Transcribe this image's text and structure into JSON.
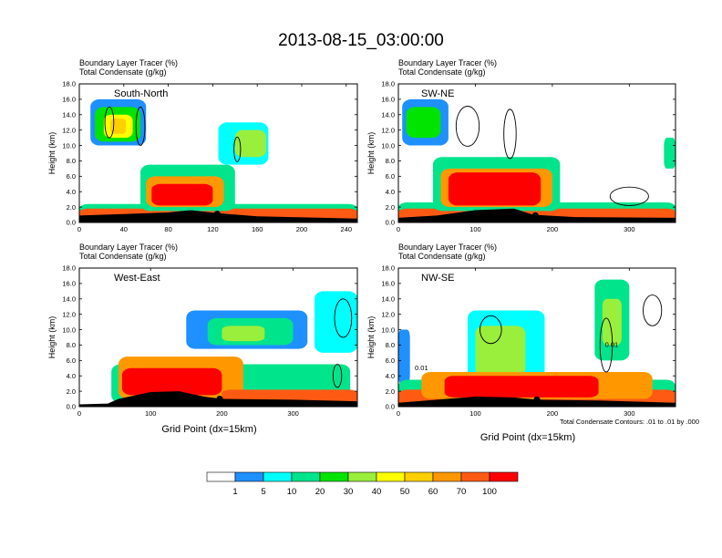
{
  "title": "2013-08-15_03:00:00",
  "palette": [
    "#ffffff",
    "#1e90ff",
    "#00ffff",
    "#00e48b",
    "#00e400",
    "#9aee3c",
    "#ffff00",
    "#ffd000",
    "#ff9800",
    "#ff5a14",
    "#ff0000"
  ],
  "colorbar": {
    "labels": [
      "1",
      "5",
      "10",
      "20",
      "30",
      "40",
      "50",
      "60",
      "70",
      "100"
    ]
  },
  "footnote": "Total Condensate Contours: .01 to .01 by .000",
  "chart_data": [
    {
      "type": "heatmap",
      "panel": "South-North",
      "header_line1": "Boundary Layer Tracer    (%)",
      "header_line2": "Total Condensate   (g/kg)",
      "xlabel": "",
      "ylabel": "Height (km)",
      "xlim": [
        0,
        250
      ],
      "ylim": [
        0,
        18
      ],
      "xticks": [
        "0",
        "40",
        "80",
        "120",
        "160",
        "200",
        "240"
      ],
      "xtick_values": [
        0,
        40,
        80,
        120,
        160,
        200,
        240
      ],
      "yticks": [
        "0.0",
        "2.0",
        "4.0",
        "6.0",
        "8.0",
        "10.0",
        "12.0",
        "14.0",
        "16.0",
        "18.0"
      ],
      "terrain_km": [
        [
          0,
          0.9
        ],
        [
          40,
          1.1
        ],
        [
          80,
          1.3
        ],
        [
          100,
          1.6
        ],
        [
          125,
          1.2
        ],
        [
          160,
          0.8
        ],
        [
          250,
          0.5
        ]
      ],
      "marker": {
        "x": 124,
        "y": 1.1
      },
      "regions": [
        {
          "x": [
            10,
            60
          ],
          "y": [
            10,
            16
          ],
          "level": 1
        },
        {
          "x": [
            14,
            55
          ],
          "y": [
            10.5,
            15
          ],
          "level": 4
        },
        {
          "x": [
            22,
            48
          ],
          "y": [
            11,
            14
          ],
          "level": 6
        },
        {
          "x": [
            28,
            42
          ],
          "y": [
            11.5,
            13.5
          ],
          "level": 7
        },
        {
          "x": [
            125,
            170
          ],
          "y": [
            7.5,
            13
          ],
          "level": 2
        },
        {
          "x": [
            140,
            168
          ],
          "y": [
            8.5,
            12
          ],
          "level": 5
        },
        {
          "x": [
            0,
            250
          ],
          "y": [
            0,
            2.4
          ],
          "level": 3
        },
        {
          "x": [
            0,
            250
          ],
          "y": [
            0,
            1.8
          ],
          "level": 9
        },
        {
          "x": [
            55,
            140
          ],
          "y": [
            1.5,
            7.5
          ],
          "level": 3
        },
        {
          "x": [
            60,
            130
          ],
          "y": [
            2,
            6
          ],
          "level": 8
        },
        {
          "x": [
            65,
            120
          ],
          "y": [
            2.2,
            5
          ],
          "level": 10
        }
      ],
      "contours": [
        {
          "x": 27,
          "y": 13,
          "rx": 4,
          "ry": 2
        },
        {
          "x": 55,
          "y": 12.5,
          "rx": 4,
          "ry": 2.5
        },
        {
          "x": 142,
          "y": 9.5,
          "rx": 3,
          "ry": 1.6
        }
      ]
    },
    {
      "type": "heatmap",
      "panel": "SW-NE",
      "header_line1": "Boundary Layer Tracer    (%)",
      "header_line2": "Total Condensate   (g/kg)",
      "xlabel": "",
      "ylabel": "Height (km)",
      "xlim": [
        0,
        360
      ],
      "ylim": [
        0,
        18
      ],
      "xticks": [
        "0",
        "100",
        "200",
        "300"
      ],
      "xtick_values": [
        0,
        100,
        200,
        300
      ],
      "yticks": [
        "0.0",
        "2.0",
        "4.0",
        "6.0",
        "8.0",
        "10.0",
        "12.0",
        "14.0",
        "16.0",
        "18.0"
      ],
      "terrain_km": [
        [
          0,
          0.6
        ],
        [
          50,
          0.9
        ],
        [
          100,
          1.6
        ],
        [
          150,
          1.8
        ],
        [
          175,
          1.0
        ],
        [
          230,
          0.7
        ],
        [
          360,
          0.6
        ]
      ],
      "marker": {
        "x": 178,
        "y": 0.9
      },
      "regions": [
        {
          "x": [
            5,
            65
          ],
          "y": [
            10,
            16
          ],
          "level": 1
        },
        {
          "x": [
            10,
            55
          ],
          "y": [
            11,
            15
          ],
          "level": 4
        },
        {
          "x": [
            345,
            360
          ],
          "y": [
            7,
            11
          ],
          "level": 3
        },
        {
          "x": [
            0,
            360
          ],
          "y": [
            0,
            2.6
          ],
          "level": 3
        },
        {
          "x": [
            0,
            360
          ],
          "y": [
            0,
            1.8
          ],
          "level": 9
        },
        {
          "x": [
            45,
            210
          ],
          "y": [
            1.5,
            8.5
          ],
          "level": 3
        },
        {
          "x": [
            55,
            200
          ],
          "y": [
            2,
            7
          ],
          "level": 8
        },
        {
          "x": [
            65,
            185
          ],
          "y": [
            2.2,
            6.5
          ],
          "level": 10
        }
      ],
      "contours": [
        {
          "x": 90,
          "y": 12.5,
          "rx": 15,
          "ry": 2.6
        },
        {
          "x": 145,
          "y": 11.5,
          "rx": 8,
          "ry": 3.2
        },
        {
          "x": 300,
          "y": 3.4,
          "rx": 25,
          "ry": 1.2
        }
      ]
    },
    {
      "type": "heatmap",
      "panel": "West-East",
      "header_line1": "Boundary Layer Tracer    (%)",
      "header_line2": "Total Condensate   (g/kg)",
      "xlabel": "Grid Point (dx=15km)",
      "ylabel": "Height (km)",
      "xlim": [
        0,
        390
      ],
      "ylim": [
        0,
        18
      ],
      "xticks": [
        "0",
        "100",
        "200",
        "300"
      ],
      "xtick_values": [
        0,
        100,
        200,
        300
      ],
      "yticks": [
        "0.0",
        "2.0",
        "4.0",
        "6.0",
        "8.0",
        "10.0",
        "12.0",
        "14.0",
        "16.0",
        "18.0"
      ],
      "terrain_km": [
        [
          0,
          0.3
        ],
        [
          40,
          0.4
        ],
        [
          55,
          1.0
        ],
        [
          100,
          1.9
        ],
        [
          140,
          2.0
        ],
        [
          175,
          1.3
        ],
        [
          200,
          1.0
        ],
        [
          300,
          0.9
        ],
        [
          390,
          0.7
        ]
      ],
      "marker": {
        "x": 197,
        "y": 1.0
      },
      "regions": [
        {
          "x": [
            150,
            320
          ],
          "y": [
            7.5,
            12.5
          ],
          "level": 1
        },
        {
          "x": [
            180,
            300
          ],
          "y": [
            8,
            11.5
          ],
          "level": 3
        },
        {
          "x": [
            200,
            260
          ],
          "y": [
            8.5,
            10.5
          ],
          "level": 5
        },
        {
          "x": [
            330,
            390
          ],
          "y": [
            7,
            15
          ],
          "level": 2
        },
        {
          "x": [
            45,
            380
          ],
          "y": [
            0.5,
            5.5
          ],
          "level": 3
        },
        {
          "x": [
            55,
            230
          ],
          "y": [
            1,
            6.5
          ],
          "level": 8
        },
        {
          "x": [
            60,
            200
          ],
          "y": [
            1.5,
            5
          ],
          "level": 10
        },
        {
          "x": [
            200,
            390
          ],
          "y": [
            0.5,
            2.2
          ],
          "level": 9
        }
      ],
      "contours": [
        {
          "x": 370,
          "y": 11.5,
          "rx": 12,
          "ry": 2.5
        },
        {
          "x": 362,
          "y": 4.0,
          "rx": 6,
          "ry": 1.5
        }
      ]
    },
    {
      "type": "heatmap",
      "panel": "NW-SE",
      "header_line1": "Boundary Layer Tracer    (%)",
      "header_line2": "Total Condensate   (g/kg)",
      "xlabel": "Grid Point (dx=15km)",
      "ylabel": "Height (km)",
      "xlim": [
        0,
        360
      ],
      "ylim": [
        0,
        18
      ],
      "xticks": [
        "0",
        "100",
        "200",
        "300"
      ],
      "xtick_values": [
        0,
        100,
        200,
        300
      ],
      "yticks": [
        "0.0",
        "2.0",
        "4.0",
        "6.0",
        "8.0",
        "10.0",
        "12.0",
        "14.0",
        "16.0",
        "18.0"
      ],
      "terrain_km": [
        [
          0,
          0.5
        ],
        [
          50,
          0.9
        ],
        [
          100,
          1.3
        ],
        [
          150,
          1.2
        ],
        [
          180,
          0.9
        ],
        [
          260,
          0.8
        ],
        [
          360,
          0.5
        ]
      ],
      "marker": {
        "x": 180,
        "y": 0.9
      },
      "regions": [
        {
          "x": [
            0,
            15
          ],
          "y": [
            3,
            10
          ],
          "level": 1
        },
        {
          "x": [
            90,
            190
          ],
          "y": [
            3,
            12.5
          ],
          "level": 2
        },
        {
          "x": [
            100,
            165
          ],
          "y": [
            4,
            10.5
          ],
          "level": 5
        },
        {
          "x": [
            255,
            300
          ],
          "y": [
            6,
            16.5
          ],
          "level": 3
        },
        {
          "x": [
            265,
            290
          ],
          "y": [
            8,
            14
          ],
          "level": 5
        },
        {
          "x": [
            0,
            360
          ],
          "y": [
            0,
            3.5
          ],
          "level": 3
        },
        {
          "x": [
            0,
            360
          ],
          "y": [
            0,
            2.2
          ],
          "level": 9
        },
        {
          "x": [
            30,
            330
          ],
          "y": [
            1,
            4.5
          ],
          "level": 8
        },
        {
          "x": [
            60,
            260
          ],
          "y": [
            1.2,
            4
          ],
          "level": 10
        }
      ],
      "contours": [
        {
          "x": 120,
          "y": 10,
          "rx": 14,
          "ry": 1.8
        },
        {
          "x": 270,
          "y": 8,
          "rx": 8,
          "ry": 3.5
        },
        {
          "x": 330,
          "y": 12.5,
          "rx": 12,
          "ry": 2
        }
      ],
      "contour_labels": [
        {
          "text": "0.01",
          "x": 30,
          "y": 5
        },
        {
          "text": "0.01",
          "x": 277,
          "y": 8
        }
      ]
    }
  ]
}
